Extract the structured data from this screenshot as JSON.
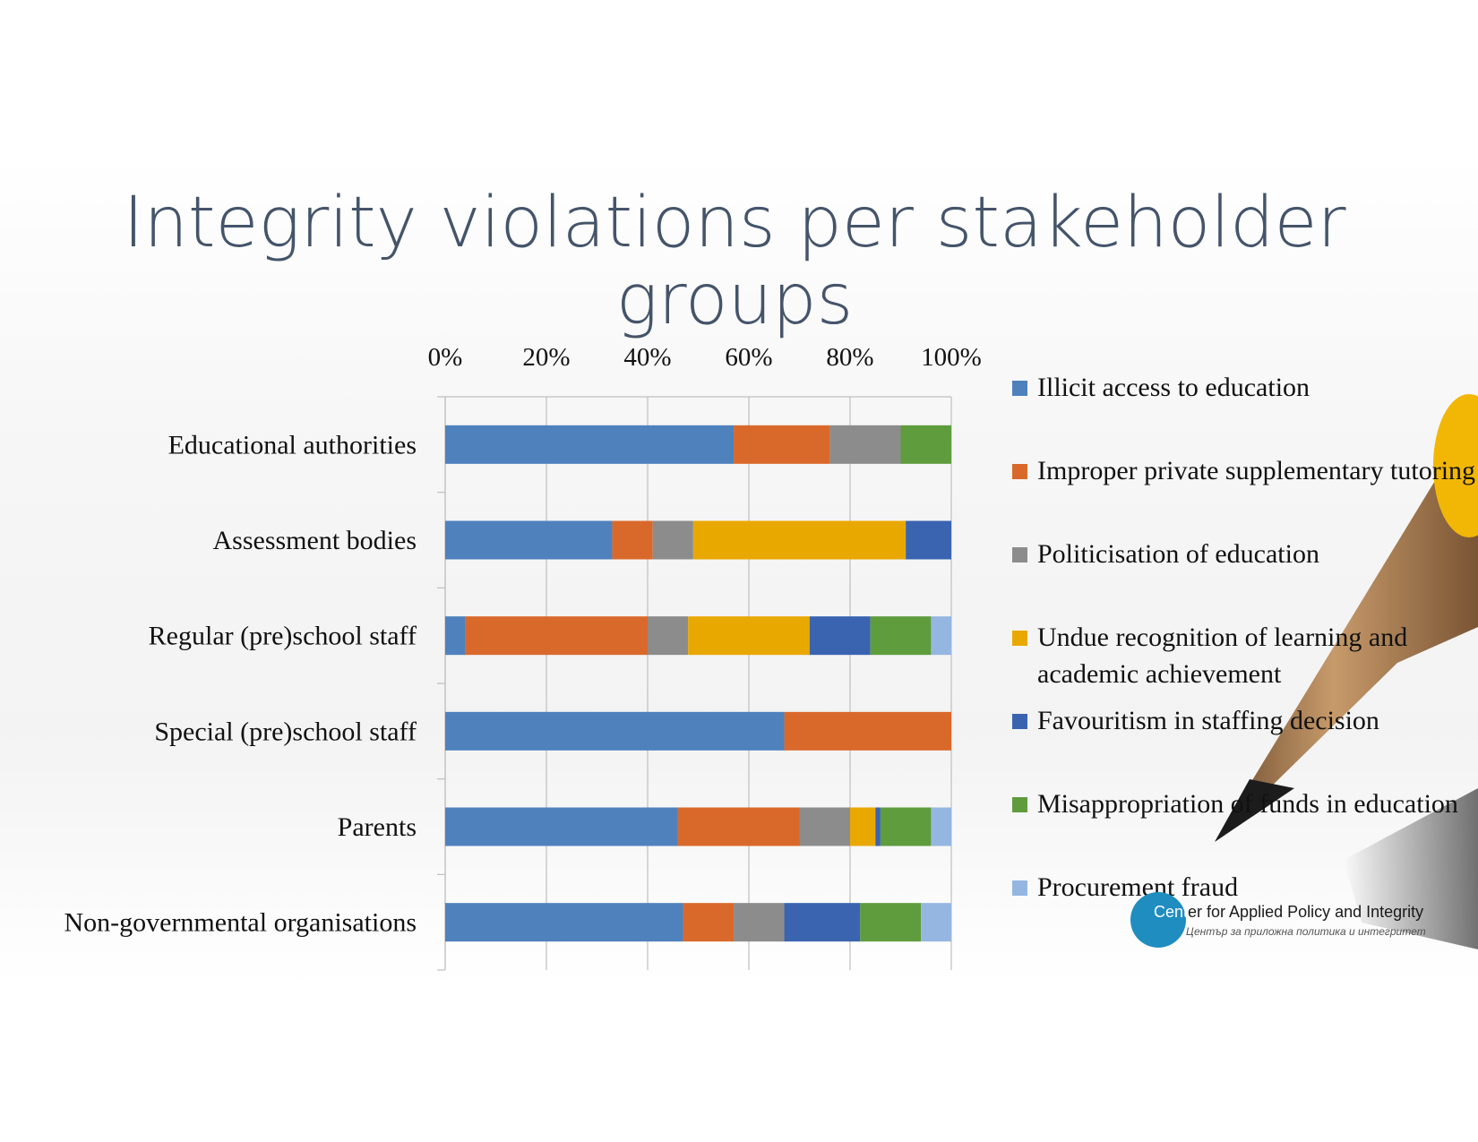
{
  "slide": {
    "title": "Integrity violations per stakeholder groups"
  },
  "logo": {
    "name_part1": "Cent",
    "name_part2": "er for Applied Policy and Integrity",
    "subtitle": "Център за приложна политика и интегритет"
  },
  "chart_data": {
    "type": "bar",
    "orientation": "horizontal",
    "stacked": "percent",
    "title": "",
    "xlabel": "",
    "ylabel": "",
    "xlim": [
      0,
      100
    ],
    "x_ticks": [
      "0%",
      "20%",
      "40%",
      "60%",
      "80%",
      "100%"
    ],
    "x_axis_position": "top",
    "grid": true,
    "legend_position": "right",
    "categories": [
      "Educational authorities",
      "Assessment bodies",
      "Regular (pre)school staff",
      "Special (pre)school staff",
      "Parents",
      "Non-governmental organisations"
    ],
    "series": [
      {
        "name": "Illicit access to education",
        "color": "#4f81bd",
        "values": [
          57,
          33,
          4,
          67,
          46,
          47
        ]
      },
      {
        "name": "Improper private supplementary tutoring",
        "color": "#d9692b",
        "values": [
          19,
          8,
          36,
          33,
          24,
          10
        ]
      },
      {
        "name": "Politicisation of education",
        "color": "#8c8c8c",
        "values": [
          14,
          8,
          8,
          0,
          10,
          10
        ]
      },
      {
        "name": "Undue recognition of learning and academic achievement",
        "color": "#e9a800",
        "values": [
          0,
          42,
          24,
          0,
          5,
          0
        ]
      },
      {
        "name": "Favouritism in staffing decision",
        "color": "#3a64b0",
        "values": [
          0,
          9,
          12,
          0,
          1,
          15
        ]
      },
      {
        "name": "Misappropriation of funds in education",
        "color": "#5f9c3d",
        "values": [
          10,
          0,
          12,
          0,
          10,
          12
        ]
      },
      {
        "name": "Procurement fraud",
        "color": "#95b6e0",
        "values": [
          0,
          0,
          4,
          0,
          4,
          6
        ]
      }
    ]
  }
}
